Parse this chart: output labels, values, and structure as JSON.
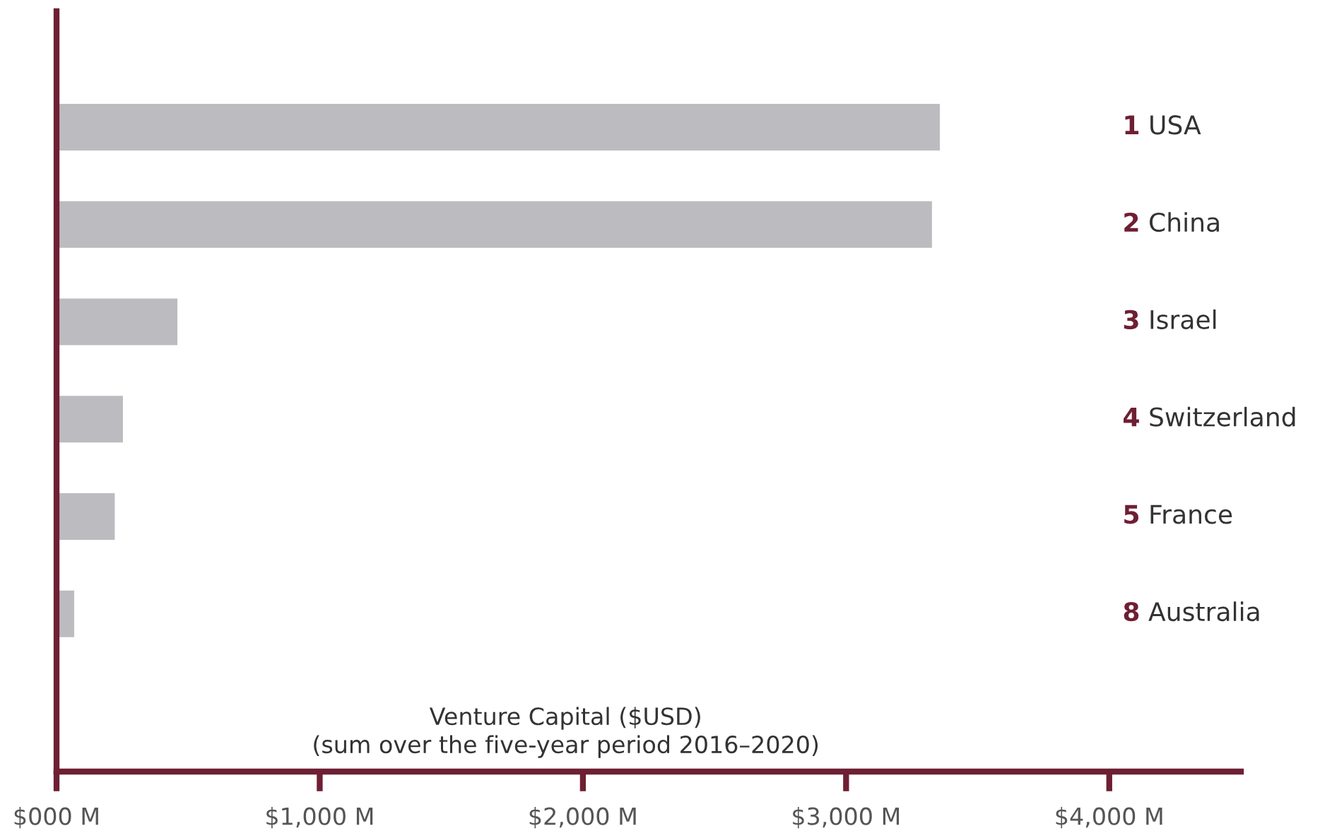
{
  "chart_data": {
    "type": "bar",
    "orientation": "horizontal",
    "xlabel": "Venture Capital ($USD)\n(sum over the five-year period 2016–2020)",
    "categories": [
      "1 USA",
      "2 China",
      "3 Israel",
      "4 Switzerland",
      "5 France",
      "8 Australia"
    ],
    "values": [
      3360,
      3330,
      463,
      256,
      225,
      71
    ],
    "color": "#bcbcc0",
    "xlim": [
      0,
      4500
    ],
    "xticks": [
      {
        "value": 0,
        "label": "$000 M"
      },
      {
        "value": 1000,
        "label": "$1,000 M"
      },
      {
        "value": 2000,
        "label": "$2,000 M"
      },
      {
        "value": 3000,
        "label": "$3,000 M"
      },
      {
        "value": 4000,
        "label": "$4,000 M"
      }
    ],
    "grid": false,
    "legend": false
  }
}
